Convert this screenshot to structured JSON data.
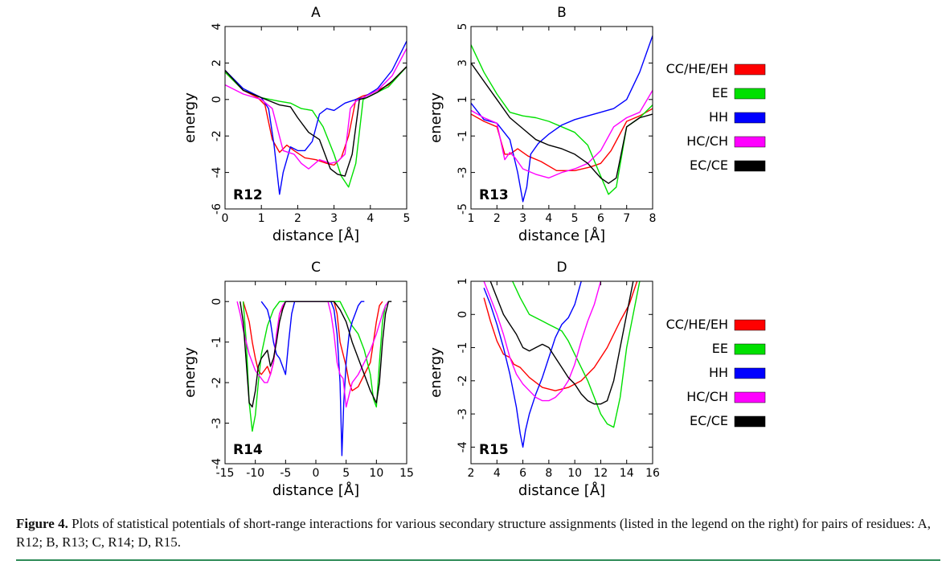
{
  "caption": {
    "label": "Figure 4.",
    "text": "Plots of statistical potentials of short-range interactions for various secondary structure assignments (listed in the legend on the right) for pairs of residues: A, R12; B, R13; C, R14; D, R15."
  },
  "colors": {
    "CC/HE/EH": "#ff0000",
    "EE": "#00e000",
    "HH": "#0000ff",
    "HC/CH": "#ff00ff",
    "EC/CE": "#000000"
  },
  "legend": [
    "CC/HE/EH",
    "EE",
    "HH",
    "HC/CH",
    "EC/CE"
  ],
  "chart_data": [
    {
      "type": "line",
      "panel_title": "A",
      "label": "R12",
      "xlabel": "distance [Å]",
      "ylabel": "energy",
      "xlim": [
        0,
        5
      ],
      "ylim": [
        -6,
        4
      ],
      "xticks": [
        0,
        1,
        2,
        3,
        4,
        5
      ],
      "yticks": [
        -6,
        -4,
        -2,
        0,
        2,
        4
      ],
      "series": [
        {
          "name": "CC/HE/EH",
          "x": [
            0,
            0.5,
            0.9,
            1.1,
            1.3,
            1.5,
            1.7,
            1.9,
            2.2,
            2.5,
            2.8,
            3.0,
            3.2,
            3.4,
            3.6,
            3.8,
            4.0,
            4.5,
            5.0
          ],
          "y": [
            1.5,
            0.5,
            0.1,
            -0.3,
            -2.2,
            -2.9,
            -2.5,
            -2.8,
            -3.2,
            -3.3,
            -3.5,
            -3.6,
            -3.2,
            -2.0,
            0.0,
            0.2,
            0.3,
            0.8,
            1.8
          ]
        },
        {
          "name": "EE",
          "x": [
            0,
            0.5,
            1.0,
            1.5,
            1.8,
            2.1,
            2.4,
            2.7,
            3.0,
            3.2,
            3.4,
            3.6,
            3.8,
            4.0,
            4.5,
            5.0
          ],
          "y": [
            1.5,
            0.5,
            0.1,
            -0.1,
            -0.2,
            -0.5,
            -0.6,
            -1.5,
            -3.0,
            -4.2,
            -4.8,
            -3.5,
            0.0,
            0.2,
            0.7,
            1.8
          ]
        },
        {
          "name": "HH",
          "x": [
            0,
            0.5,
            1.0,
            1.2,
            1.35,
            1.5,
            1.6,
            1.8,
            2.0,
            2.2,
            2.4,
            2.6,
            2.8,
            3.0,
            3.3,
            3.6,
            3.8,
            4.2,
            4.6,
            5.0
          ],
          "y": [
            1.6,
            0.6,
            0.1,
            -0.5,
            -2.5,
            -5.2,
            -4.0,
            -2.6,
            -2.8,
            -2.8,
            -2.3,
            -0.8,
            -0.5,
            -0.6,
            -0.2,
            0.0,
            0.1,
            0.6,
            1.6,
            3.2
          ]
        },
        {
          "name": "HC/CH",
          "x": [
            0,
            0.5,
            1.0,
            1.3,
            1.6,
            1.9,
            2.1,
            2.3,
            2.6,
            2.9,
            3.1,
            3.3,
            3.45,
            3.6,
            3.8,
            4.2,
            4.6,
            5.0
          ],
          "y": [
            0.8,
            0.3,
            0.0,
            -0.5,
            -2.8,
            -3.0,
            -3.5,
            -3.8,
            -3.3,
            -3.5,
            -3.4,
            -3.0,
            -0.5,
            -0.1,
            0.1,
            0.5,
            1.3,
            2.8
          ]
        },
        {
          "name": "EC/CE",
          "x": [
            0,
            0.5,
            1.0,
            1.5,
            1.8,
            2.0,
            2.3,
            2.6,
            2.9,
            3.1,
            3.3,
            3.5,
            3.7,
            3.9,
            4.2,
            4.6,
            5.0
          ],
          "y": [
            1.6,
            0.5,
            0.1,
            -0.3,
            -0.4,
            -1.0,
            -1.8,
            -2.2,
            -3.8,
            -4.1,
            -4.2,
            -3.0,
            0.0,
            0.1,
            0.4,
            1.0,
            1.8
          ]
        }
      ]
    },
    {
      "type": "line",
      "panel_title": "B",
      "label": "R13",
      "xlabel": "distance [Å]",
      "ylabel": "energy",
      "xlim": [
        1,
        8
      ],
      "ylim": [
        -5,
        5
      ],
      "xticks": [
        1,
        2,
        3,
        4,
        5,
        6,
        7,
        8
      ],
      "yticks": [
        -5,
        -3,
        -1,
        1,
        3,
        5
      ],
      "series": [
        {
          "name": "CC/HE/EH",
          "x": [
            1,
            1.5,
            2.0,
            2.3,
            2.5,
            2.8,
            3.2,
            3.7,
            4.3,
            5.0,
            5.6,
            6.0,
            6.4,
            7.0,
            7.5,
            8.0
          ],
          "y": [
            0.2,
            -0.2,
            -0.5,
            -2.0,
            -2.0,
            -1.7,
            -2.1,
            -2.4,
            -2.9,
            -2.9,
            -2.7,
            -2.5,
            -1.8,
            -0.2,
            0.1,
            0.5
          ]
        },
        {
          "name": "EE",
          "x": [
            1,
            1.5,
            2.0,
            2.5,
            3.0,
            3.5,
            4.0,
            4.5,
            5.0,
            5.5,
            6.0,
            6.3,
            6.6,
            7.0,
            7.5,
            8.0
          ],
          "y": [
            4.0,
            2.5,
            1.3,
            0.3,
            0.1,
            0.0,
            -0.2,
            -0.5,
            -0.8,
            -1.5,
            -3.2,
            -4.2,
            -3.8,
            -0.5,
            0.0,
            0.7
          ]
        },
        {
          "name": "HH",
          "x": [
            1,
            1.5,
            2.0,
            2.5,
            2.8,
            3.0,
            3.15,
            3.3,
            3.6,
            4.0,
            4.5,
            5.0,
            5.5,
            6.0,
            6.5,
            7.0,
            7.5,
            8.0
          ],
          "y": [
            0.8,
            -0.1,
            -0.3,
            -1.2,
            -3.0,
            -4.6,
            -3.8,
            -2.0,
            -1.4,
            -0.9,
            -0.4,
            -0.1,
            0.1,
            0.3,
            0.5,
            1.0,
            2.5,
            4.5
          ]
        },
        {
          "name": "HC/CH",
          "x": [
            1,
            1.5,
            2.0,
            2.3,
            2.5,
            2.7,
            3.0,
            3.5,
            4.0,
            4.5,
            5.0,
            5.5,
            6.0,
            6.5,
            7.0,
            7.5,
            8.0
          ],
          "y": [
            0.4,
            0.0,
            -0.3,
            -2.3,
            -1.9,
            -2.2,
            -2.8,
            -3.1,
            -3.3,
            -3.0,
            -2.8,
            -2.5,
            -1.8,
            -0.5,
            0.0,
            0.3,
            1.5
          ]
        },
        {
          "name": "EC/CE",
          "x": [
            1,
            1.5,
            2.0,
            2.5,
            3.0,
            3.5,
            4.0,
            4.5,
            5.0,
            5.5,
            6.0,
            6.3,
            6.6,
            7.0,
            7.5,
            8.0
          ],
          "y": [
            3.0,
            2.0,
            1.0,
            0.0,
            -0.6,
            -1.2,
            -1.5,
            -1.7,
            -2.0,
            -2.5,
            -3.3,
            -3.6,
            -3.3,
            -0.5,
            0.0,
            0.2
          ]
        }
      ]
    },
    {
      "type": "line",
      "panel_title": "C",
      "label": "R14",
      "xlabel": "distance [Å]",
      "ylabel": "energy",
      "xlim": [
        -15,
        15
      ],
      "ylim": [
        -4,
        0.5
      ],
      "xticks": [
        -15,
        -10,
        -5,
        0,
        5,
        10,
        15
      ],
      "yticks": [
        -4,
        -3,
        -2,
        -1,
        0
      ],
      "series": [
        {
          "name": "CC/HE/EH",
          "x": [
            -12,
            -11,
            -10.5,
            -10,
            -9.5,
            -9,
            -8.5,
            -8,
            -7.5,
            -7,
            -6,
            -5,
            3,
            3.5,
            4,
            4.5,
            5,
            5.5,
            6,
            7,
            8,
            9,
            9.5,
            10,
            10.5,
            11
          ],
          "y": [
            0,
            -0.5,
            -1.0,
            -1.4,
            -1.7,
            -1.8,
            -1.7,
            -1.6,
            -1.8,
            -1.5,
            -0.3,
            0,
            0,
            -0.3,
            -1.0,
            -1.3,
            -1.6,
            -2.0,
            -2.2,
            -2.1,
            -1.8,
            -1.5,
            -1.0,
            -0.5,
            -0.1,
            0
          ]
        },
        {
          "name": "EE",
          "x": [
            -12,
            -11.5,
            -11,
            -10.5,
            -10,
            -9.5,
            -9,
            -8,
            -7,
            -6,
            -5,
            3,
            4,
            5,
            6,
            7,
            8,
            9,
            9.5,
            10,
            10.5,
            11,
            11.5,
            12
          ],
          "y": [
            0,
            -1.0,
            -2.5,
            -3.2,
            -2.8,
            -2.0,
            -1.3,
            -0.6,
            -0.2,
            0,
            0,
            0,
            0,
            -0.3,
            -0.6,
            -0.8,
            -1.2,
            -1.8,
            -2.4,
            -2.6,
            -1.5,
            -0.5,
            -0.1,
            0
          ]
        },
        {
          "name": "HH",
          "x": [
            -9,
            -8,
            -7.5,
            -7,
            -6.5,
            -6,
            -5.5,
            -5,
            -4.5,
            -4,
            -3.5,
            2.5,
            3,
            3.5,
            4,
            4.3,
            4.6,
            5,
            5.5,
            6,
            6.5,
            7,
            7.5,
            8
          ],
          "y": [
            0,
            -0.2,
            -0.5,
            -1.0,
            -1.3,
            -1.4,
            -1.6,
            -1.8,
            -1.0,
            -0.3,
            0,
            0,
            -0.2,
            -0.8,
            -2.0,
            -3.8,
            -2.5,
            -1.5,
            -0.8,
            -0.5,
            -0.3,
            -0.1,
            0,
            0
          ]
        },
        {
          "name": "HC/CH",
          "x": [
            -13,
            -12.5,
            -12,
            -11.5,
            -11,
            -10,
            -9,
            -8.5,
            -8,
            -7.5,
            -7,
            -6.5,
            -6,
            -5.5,
            -5,
            2,
            2.5,
            3,
            3.5,
            4,
            4.5,
            5,
            5.5,
            6,
            7,
            8,
            9,
            10,
            11,
            11.5,
            12
          ],
          "y": [
            0,
            -0.3,
            -0.7,
            -1.0,
            -1.3,
            -1.7,
            -1.9,
            -2.0,
            -2.0,
            -1.8,
            -1.5,
            -0.8,
            -0.3,
            -0.1,
            0,
            0,
            -0.3,
            -0.8,
            -1.5,
            -1.8,
            -1.9,
            -2.6,
            -2.3,
            -2.0,
            -1.8,
            -1.5,
            -1.2,
            -0.8,
            -0.3,
            -0.1,
            0
          ]
        },
        {
          "name": "EC/CE",
          "x": [
            -12.5,
            -12,
            -11.5,
            -11,
            -10.5,
            -10,
            -9.5,
            -9,
            -8,
            -7.5,
            -7,
            -6.5,
            -6,
            -5.5,
            -5,
            -4,
            3,
            4,
            5,
            6,
            7,
            8,
            9,
            10,
            10.5,
            11,
            11.5,
            12,
            12.5
          ],
          "y": [
            0,
            -0.5,
            -1.5,
            -2.5,
            -2.6,
            -2.2,
            -1.6,
            -1.4,
            -1.2,
            -1.6,
            -1.4,
            -1.0,
            -0.5,
            -0.2,
            0,
            0,
            0,
            -0.2,
            -0.5,
            -1.0,
            -1.4,
            -1.8,
            -2.2,
            -2.5,
            -2.0,
            -1.0,
            -0.3,
            0,
            0
          ]
        }
      ]
    },
    {
      "type": "line",
      "panel_title": "D",
      "label": "R15",
      "xlabel": "distance [Å]",
      "ylabel": "energy",
      "xlim": [
        2,
        16
      ],
      "ylim": [
        -4.5,
        1
      ],
      "xticks": [
        2,
        4,
        6,
        8,
        10,
        12,
        14,
        16
      ],
      "yticks": [
        -4,
        -3,
        -2,
        -1,
        0,
        1
      ],
      "series": [
        {
          "name": "CC/HE/EH",
          "x": [
            3,
            3.5,
            4,
            4.5,
            5,
            5.3,
            5.8,
            6.5,
            7.5,
            8.5,
            9.5,
            10.5,
            11.5,
            12.5,
            13.5,
            14.2,
            14.8
          ],
          "y": [
            0.5,
            -0.2,
            -0.8,
            -1.2,
            -1.3,
            -1.5,
            -1.6,
            -1.9,
            -2.2,
            -2.3,
            -2.2,
            -2.0,
            -1.6,
            -1.0,
            -0.2,
            0.3,
            1.0
          ]
        },
        {
          "name": "EE",
          "x": [
            5.2,
            5.8,
            6.5,
            7.0,
            7.5,
            8.0,
            8.5,
            9.0,
            9.5,
            10.0,
            10.5,
            11.0,
            11.5,
            12.0,
            12.5,
            13.0,
            13.5,
            14.0,
            14.5,
            15.0
          ],
          "y": [
            1.0,
            0.5,
            0.0,
            -0.1,
            -0.2,
            -0.3,
            -0.4,
            -0.5,
            -0.8,
            -1.2,
            -1.6,
            -2.0,
            -2.5,
            -3.0,
            -3.3,
            -3.4,
            -2.5,
            -1.0,
            0.0,
            1.0
          ]
        },
        {
          "name": "HH",
          "x": [
            3,
            3.5,
            4,
            4.5,
            5,
            5.5,
            5.8,
            6.0,
            6.2,
            6.5,
            7.0,
            7.5,
            8.0,
            8.5,
            9.0,
            9.5,
            10.0,
            10.5
          ],
          "y": [
            0.8,
            0.3,
            -0.3,
            -1.0,
            -1.8,
            -2.8,
            -3.6,
            -4.0,
            -3.5,
            -3.0,
            -2.4,
            -1.9,
            -1.3,
            -0.7,
            -0.3,
            -0.1,
            0.3,
            1.0
          ]
        },
        {
          "name": "HC/CH",
          "x": [
            3,
            3.5,
            4,
            4.5,
            5,
            5.5,
            6,
            6.5,
            7,
            7.5,
            8,
            8.5,
            9,
            9.5,
            10,
            10.5,
            11,
            11.5,
            12
          ],
          "y": [
            1.0,
            0.5,
            0.0,
            -0.6,
            -1.3,
            -1.8,
            -2.1,
            -2.3,
            -2.5,
            -2.6,
            -2.6,
            -2.5,
            -2.3,
            -2.0,
            -1.5,
            -0.8,
            -0.2,
            0.3,
            1.0
          ]
        },
        {
          "name": "EC/CE",
          "x": [
            3.5,
            4,
            4.5,
            5,
            5.5,
            6,
            6.5,
            7,
            7.5,
            8,
            8.5,
            9,
            9.5,
            10,
            10.5,
            11,
            11.5,
            12,
            12.5,
            13,
            13.5,
            14,
            14.5
          ],
          "y": [
            1.0,
            0.5,
            0.0,
            -0.3,
            -0.6,
            -1.0,
            -1.1,
            -1.0,
            -0.9,
            -1.0,
            -1.3,
            -1.6,
            -1.9,
            -2.1,
            -2.4,
            -2.6,
            -2.7,
            -2.7,
            -2.6,
            -2.0,
            -1.0,
            0.0,
            1.0
          ]
        }
      ]
    }
  ]
}
